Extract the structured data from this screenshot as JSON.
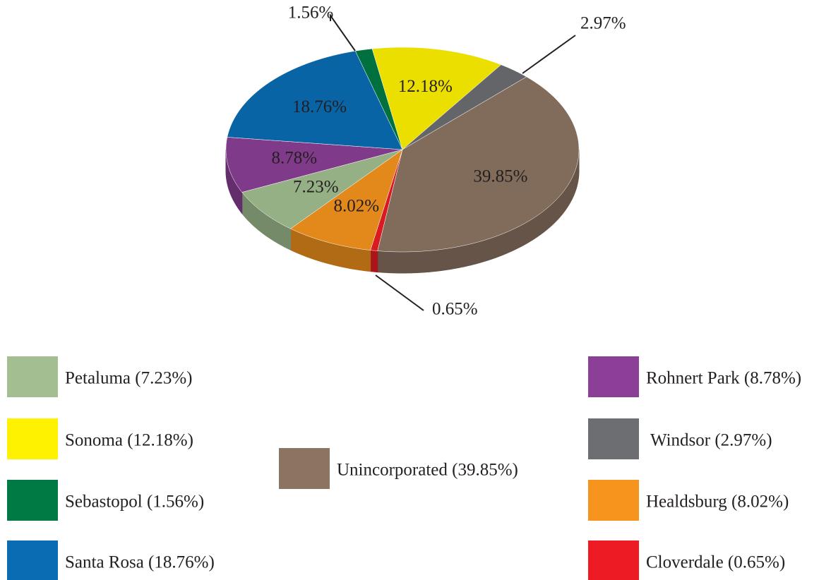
{
  "chart_data": {
    "type": "pie",
    "categories": [
      "Sebastopol (1.56%)",
      "Sonoma (12.18%)",
      "Windsor (2.97%)",
      "Unincorporated (39.85%)",
      "Cloverdale (0.65%)",
      "Healdsburg (8.02%)",
      "Petaluma (7.23%)",
      "Rohnert Park (8.78%)",
      "Santa Rosa (18.76%)"
    ],
    "values": [
      1.56,
      12.18,
      2.97,
      39.85,
      0.65,
      8.02,
      7.23,
      8.78,
      18.76
    ],
    "value_labels": [
      "1.56%",
      "12.18%",
      "2.97%",
      "39.85%",
      "0.65%",
      "8.02%",
      "7.23%",
      "8.78%",
      "18.76%"
    ],
    "colors": [
      "#007a45",
      "#fff200",
      "#6d6e71",
      "#8c7462",
      "#ed1c24",
      "#f7941d",
      "#a3bf92",
      "#8b3f96",
      "#0a6db3"
    ]
  }
}
